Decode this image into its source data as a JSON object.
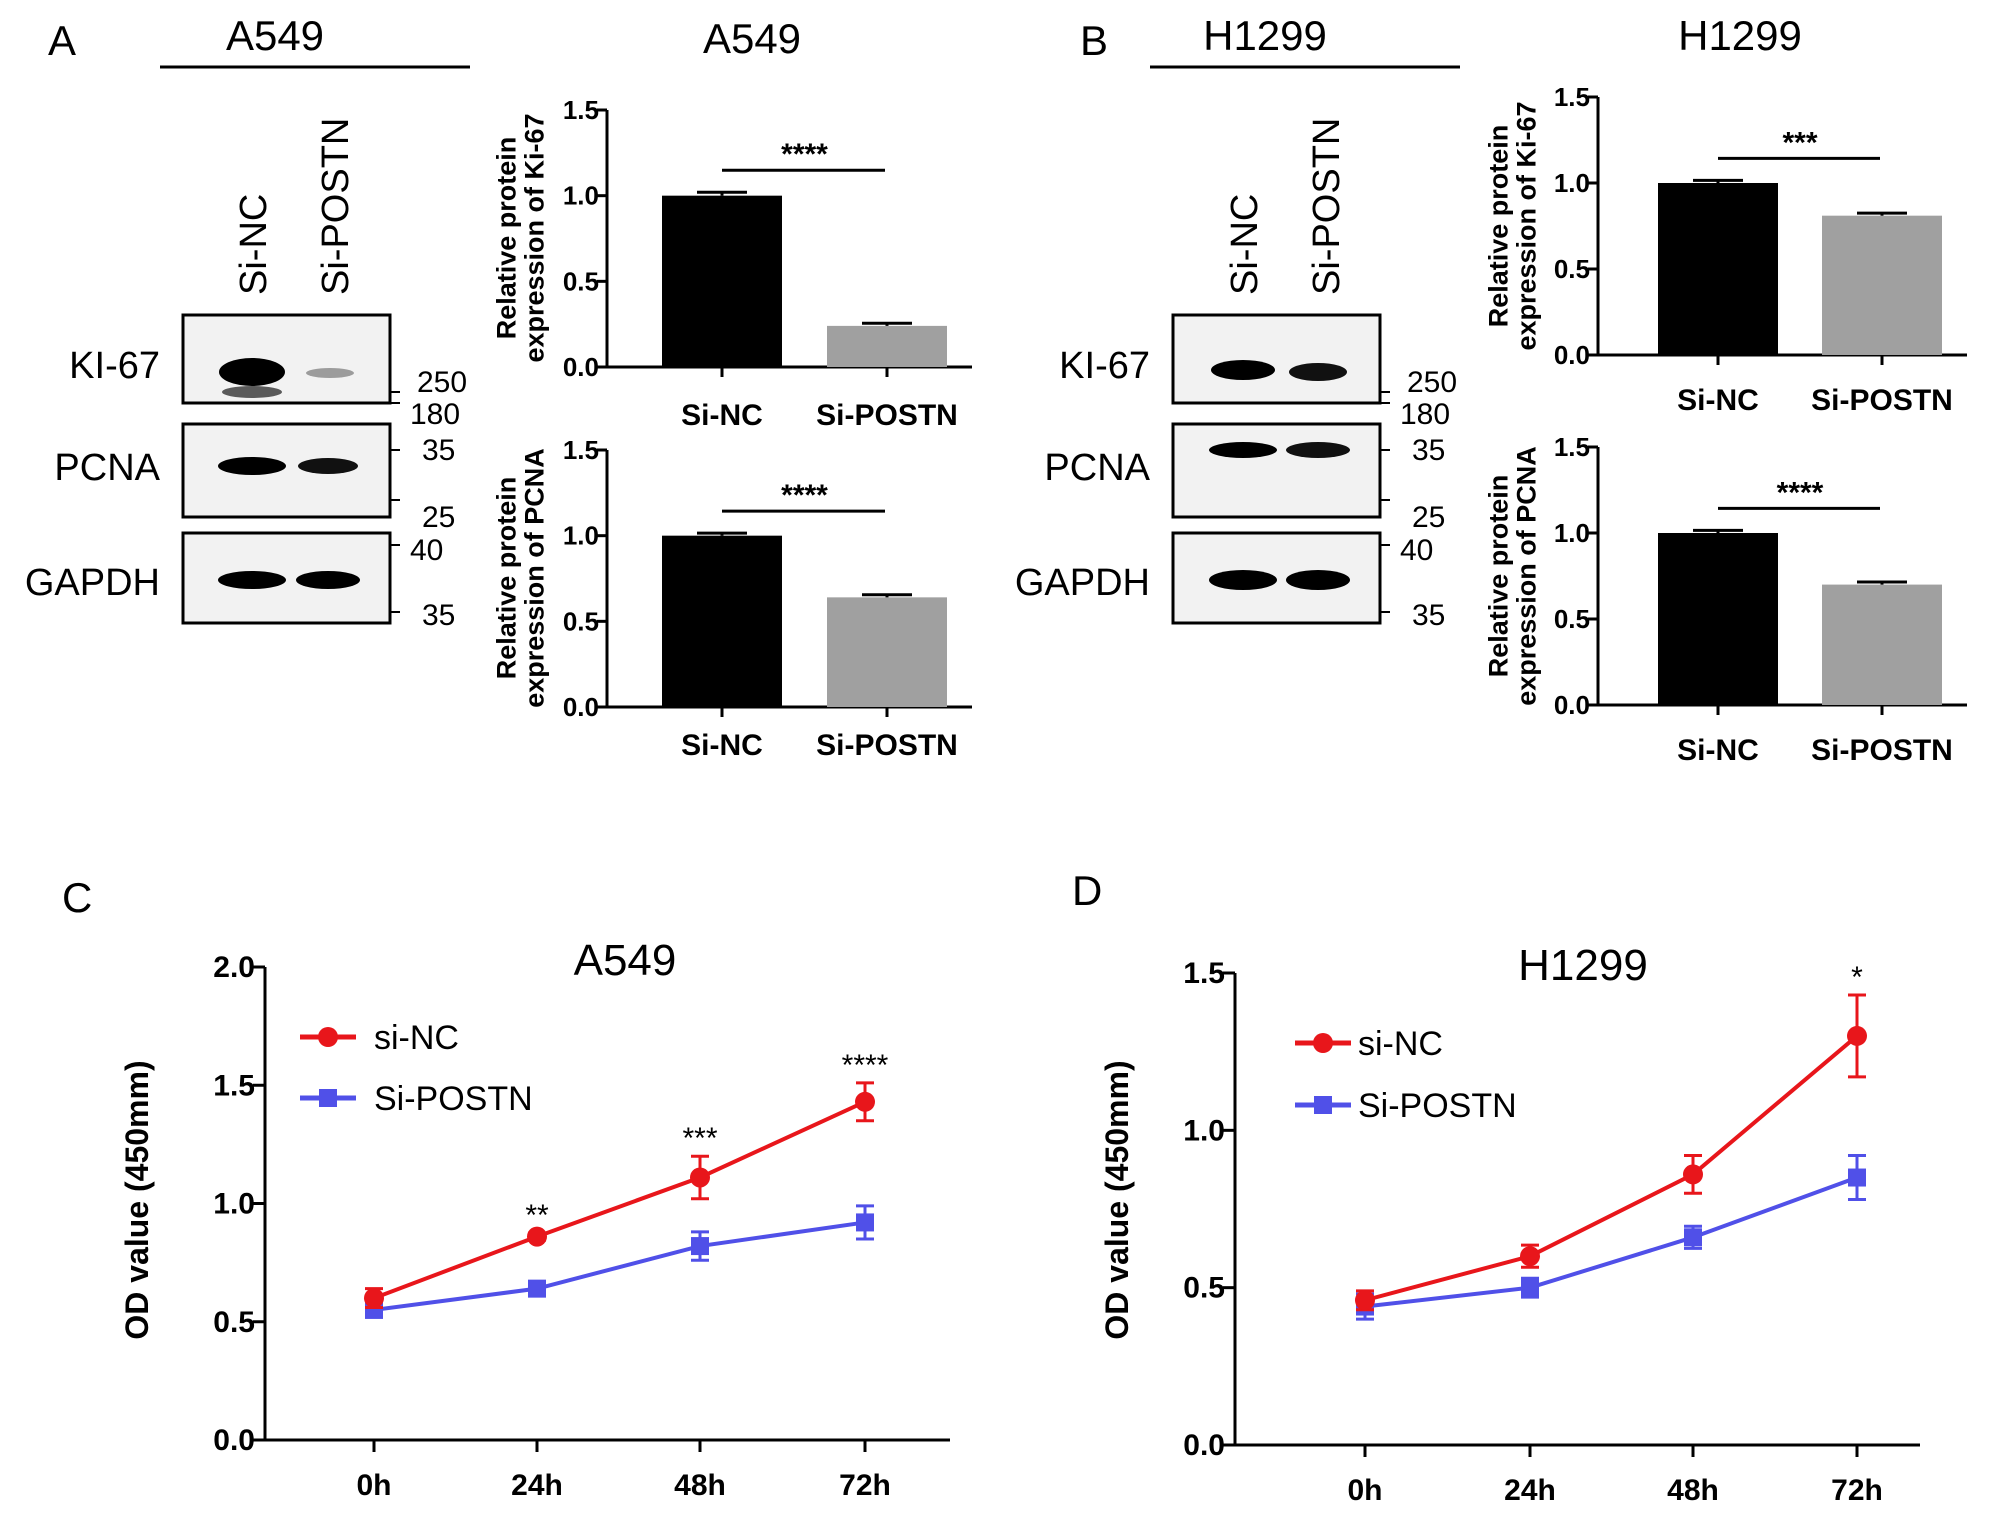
{
  "panel_letters": [
    "A",
    "B",
    "C",
    "D"
  ],
  "western_blots": [
    {
      "cell_line": "A549",
      "lanes": [
        "Si-NC",
        "Si-POSTN"
      ],
      "rows": [
        {
          "label": "KI-67",
          "markers": [
            "250",
            "180"
          ],
          "intensity": [
            1.0,
            0.25
          ]
        },
        {
          "label": "PCNA",
          "markers": [
            "35",
            "25"
          ],
          "intensity": [
            0.85,
            0.6
          ]
        },
        {
          "label": "GAPDH",
          "markers": [
            "40",
            "35"
          ],
          "intensity": [
            0.8,
            0.8
          ]
        }
      ]
    },
    {
      "cell_line": "H1299",
      "lanes": [
        "Si-NC",
        "Si-POSTN"
      ],
      "rows": [
        {
          "label": "KI-67",
          "markers": [
            "250",
            "180"
          ],
          "intensity": [
            0.85,
            0.75
          ]
        },
        {
          "label": "PCNA",
          "markers": [
            "35",
            "25"
          ],
          "intensity": [
            0.85,
            0.8
          ]
        },
        {
          "label": "GAPDH",
          "markers": [
            "40",
            "35"
          ],
          "intensity": [
            0.85,
            0.85
          ]
        }
      ]
    }
  ],
  "chart_data": [
    {
      "id": "A-ki67",
      "type": "bar",
      "title": "A549",
      "xlabel": "",
      "ylabel": "Relative protein expression of Ki-67",
      "ylim": [
        0,
        1.5
      ],
      "yticks": [
        "0.0",
        "0.5",
        "1.0",
        "1.5"
      ],
      "categories": [
        "Si-NC",
        "Si-POSTN"
      ],
      "values": [
        1.0,
        0.24
      ],
      "errors": [
        0.02,
        0.015
      ],
      "bar_colors": [
        "#000000",
        "#a0a0a0"
      ],
      "significance": "****"
    },
    {
      "id": "A-pcna",
      "type": "bar",
      "title": "",
      "xlabel": "",
      "ylabel": "Relative protein expression of PCNA",
      "ylim": [
        0,
        1.5
      ],
      "yticks": [
        "0.0",
        "0.5",
        "1.0",
        "1.5"
      ],
      "categories": [
        "Si-NC",
        "Si-POSTN"
      ],
      "values": [
        1.0,
        0.64
      ],
      "errors": [
        0.015,
        0.015
      ],
      "bar_colors": [
        "#000000",
        "#a0a0a0"
      ],
      "significance": "****"
    },
    {
      "id": "B-ki67",
      "type": "bar",
      "title": "H1299",
      "xlabel": "",
      "ylabel": "Relative protein expression of Ki-67",
      "ylim": [
        0,
        1.5
      ],
      "yticks": [
        "0.0",
        "0.5",
        "1.0",
        "1.5"
      ],
      "categories": [
        "Si-NC",
        "Si-POSTN"
      ],
      "values": [
        1.0,
        0.81
      ],
      "errors": [
        0.015,
        0.015
      ],
      "bar_colors": [
        "#000000",
        "#a0a0a0"
      ],
      "significance": "***"
    },
    {
      "id": "B-pcna",
      "type": "bar",
      "title": "",
      "xlabel": "",
      "ylabel": "Relative protein expression of PCNA",
      "ylim": [
        0,
        1.5
      ],
      "yticks": [
        "0.0",
        "0.5",
        "1.0",
        "1.5"
      ],
      "categories": [
        "Si-NC",
        "Si-POSTN"
      ],
      "values": [
        1.0,
        0.7
      ],
      "errors": [
        0.015,
        0.015
      ],
      "bar_colors": [
        "#000000",
        "#a0a0a0"
      ],
      "significance": "****"
    },
    {
      "id": "C",
      "type": "line",
      "title": "A549",
      "xlabel": "",
      "ylabel": "OD  value (450mm)",
      "ylim": [
        0,
        2.0
      ],
      "yticks": [
        "0.0",
        "0.5",
        "1.0",
        "1.5",
        "2.0"
      ],
      "x": [
        "0h",
        "24h",
        "48h",
        "72h"
      ],
      "legend_position": "top-left",
      "series": [
        {
          "name": "si-NC",
          "color": "#e8161b",
          "marker": "circle",
          "values": [
            0.6,
            0.86,
            1.11,
            1.43
          ],
          "errors": [
            0.04,
            0.015,
            0.09,
            0.08
          ]
        },
        {
          "name": "Si-POSTN",
          "color": "#5050e8",
          "marker": "square",
          "values": [
            0.55,
            0.64,
            0.82,
            0.92
          ],
          "errors": [
            0.025,
            0.025,
            0.06,
            0.07
          ]
        }
      ],
      "significance": [
        "",
        "**",
        "***",
        "****"
      ]
    },
    {
      "id": "D",
      "type": "line",
      "title": "H1299",
      "xlabel": "",
      "ylabel": "OD value (450mm)",
      "ylim": [
        0,
        1.5
      ],
      "yticks": [
        "0.0",
        "0.5",
        "1.0",
        "1.5"
      ],
      "x": [
        "0h",
        "24h",
        "48h",
        "72h"
      ],
      "legend_position": "top-left",
      "series": [
        {
          "name": "si-NC",
          "color": "#e8161b",
          "marker": "circle",
          "values": [
            0.46,
            0.6,
            0.86,
            1.3
          ],
          "errors": [
            0.03,
            0.035,
            0.06,
            0.13
          ]
        },
        {
          "name": "Si-POSTN",
          "color": "#5050e8",
          "marker": "square",
          "values": [
            0.44,
            0.5,
            0.66,
            0.85
          ],
          "errors": [
            0.04,
            0.03,
            0.035,
            0.07
          ]
        }
      ],
      "significance": [
        "",
        "",
        "",
        "*"
      ]
    }
  ]
}
